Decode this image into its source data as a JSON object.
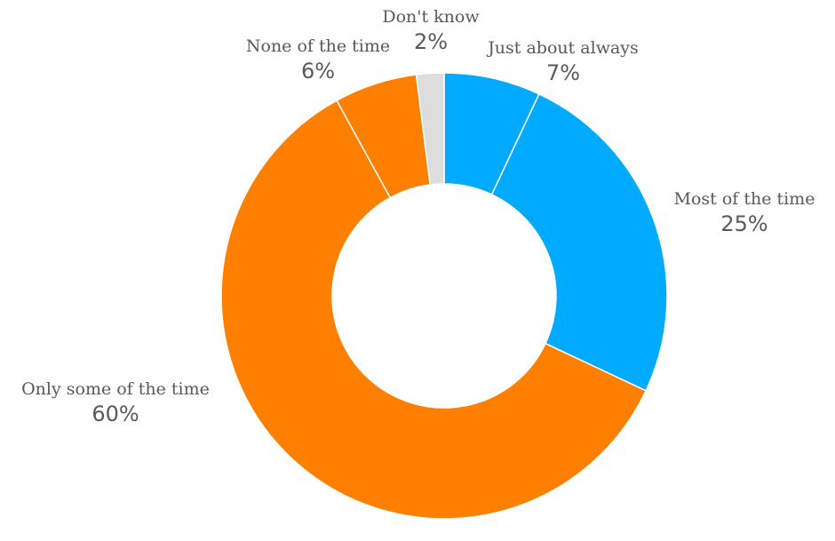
{
  "chart_data": {
    "type": "pie",
    "style": "donut",
    "start_angle_deg": 0,
    "direction": "clockwise",
    "legend": "none",
    "slices": [
      {
        "label": "Just about always",
        "value": 7,
        "display": "7%",
        "color": "#00AAFF"
      },
      {
        "label": "Most of the time",
        "value": 25,
        "display": "25%",
        "color": "#00AAFF"
      },
      {
        "label": "Only some of the time",
        "value": 60,
        "display": "60%",
        "color": "#FF7F00"
      },
      {
        "label": "None of the time",
        "value": 6,
        "display": "6%",
        "color": "#FF7F00"
      },
      {
        "label": "Don't know",
        "value": 2,
        "display": "2%",
        "color": "#DDDDDD"
      }
    ]
  }
}
